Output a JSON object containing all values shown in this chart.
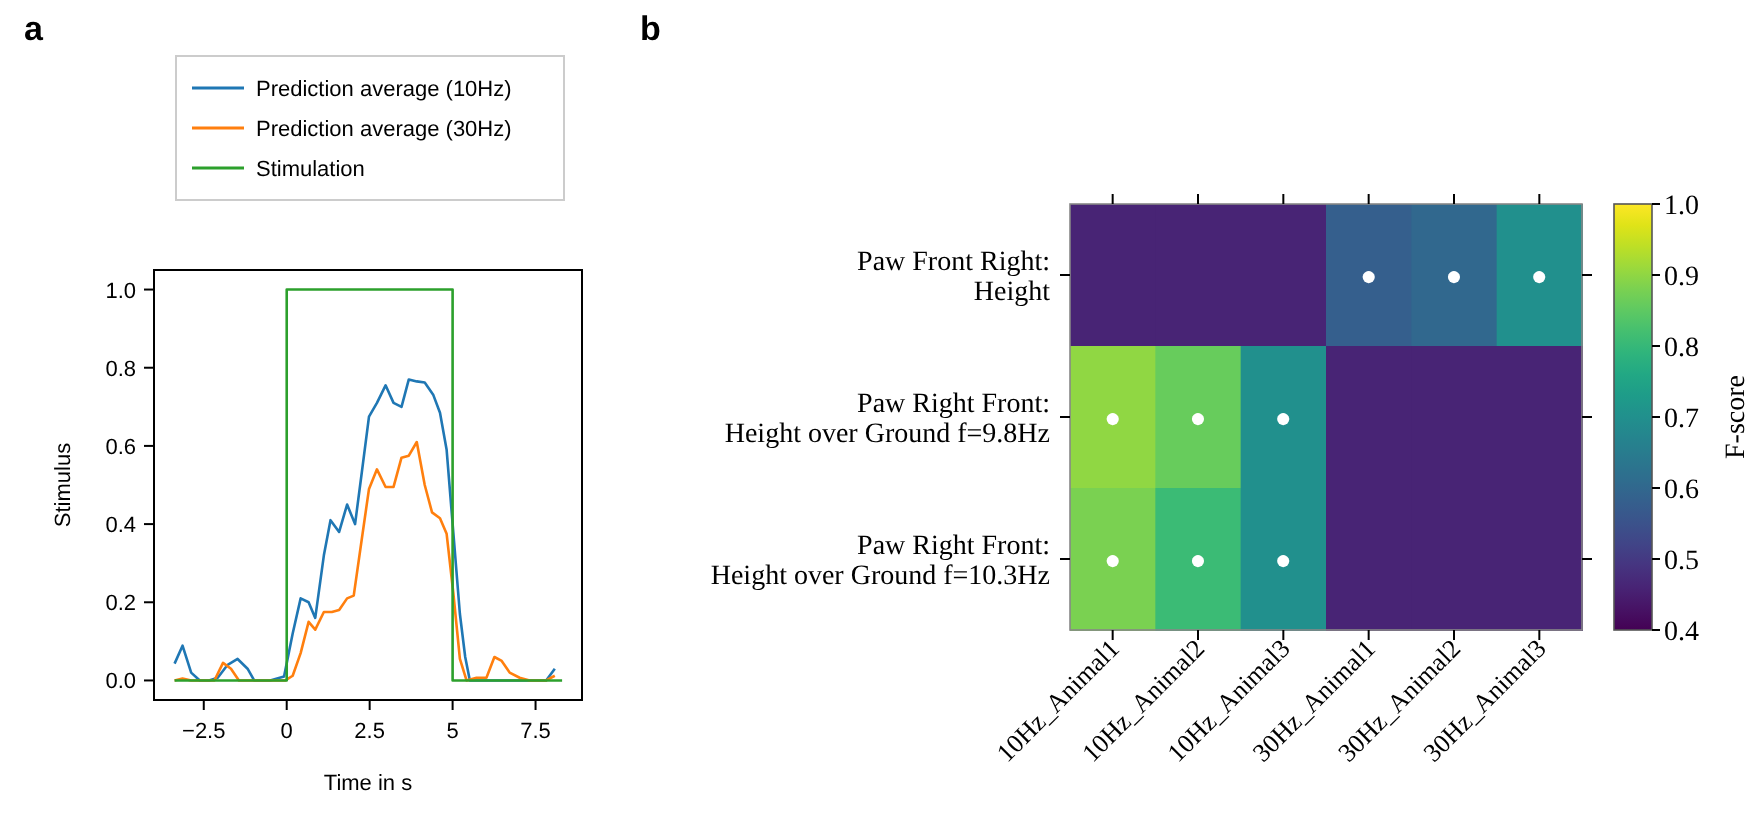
{
  "chart_data": [
    {
      "type": "line",
      "title": "a",
      "xlabel": "Time in s",
      "ylabel": "Stimulus",
      "xlim": [
        -4.0,
        8.9
      ],
      "ylim": [
        -0.05,
        1.05
      ],
      "xticks": [
        {
          "value": -2.5,
          "label": "−2.5"
        },
        0,
        2.5,
        5,
        7.5
      ],
      "yticks": [
        {
          "value": 0,
          "label": "0.0"
        },
        0.2,
        0.4,
        0.6,
        0.8,
        {
          "value": 1,
          "label": "1.0"
        }
      ],
      "legend": "top",
      "grid": false,
      "series": [
        {
          "name": "Prediction average (10Hz)",
          "color": "#1f77b4",
          "x": [
            -3.38,
            -3.14,
            -2.88,
            -2.62,
            -2.34,
            -2.08,
            -1.78,
            -1.48,
            -1.18,
            -0.98,
            -0.5,
            -0.08,
            0.18,
            0.42,
            0.66,
            0.86,
            1.12,
            1.32,
            1.58,
            1.82,
            2.06,
            2.26,
            2.48,
            2.72,
            2.98,
            3.22,
            3.46,
            3.68,
            3.92,
            4.16,
            4.42,
            4.62,
            4.82,
            5.02,
            5.22,
            5.38,
            5.52,
            6.5,
            7.82,
            8.08
          ],
          "values": [
            0.043,
            0.089,
            0.02,
            0,
            0,
            0.007,
            0.04,
            0.055,
            0.03,
            0,
            0,
            0.01,
            0.12,
            0.21,
            0.2,
            0.16,
            0.32,
            0.41,
            0.38,
            0.45,
            0.4,
            0.53,
            0.675,
            0.71,
            0.755,
            0.71,
            0.7,
            0.77,
            0.765,
            0.762,
            0.73,
            0.685,
            0.59,
            0.38,
            0.17,
            0.06,
            0,
            0,
            0,
            0.03
          ]
        },
        {
          "name": "Prediction average (30Hz)",
          "color": "#ff7f0e",
          "x": [
            -3.38,
            -3.14,
            -2.88,
            -2.18,
            -1.92,
            -1.68,
            -1.44,
            -0.5,
            -0.04,
            0.18,
            0.42,
            0.66,
            0.86,
            1.12,
            1.36,
            1.58,
            1.82,
            2.02,
            2.26,
            2.48,
            2.72,
            2.98,
            3.22,
            3.46,
            3.68,
            3.92,
            4.16,
            4.38,
            4.62,
            4.82,
            5.02,
            5.22,
            5.42,
            5.72,
            6.02,
            6.26,
            6.48,
            6.72,
            7.02,
            7.32,
            7.82,
            8.08
          ],
          "values": [
            0,
            0.005,
            0,
            0,
            0.045,
            0.03,
            0,
            0,
            0,
            0.012,
            0.07,
            0.15,
            0.13,
            0.175,
            0.175,
            0.18,
            0.21,
            0.217,
            0.36,
            0.49,
            0.54,
            0.495,
            0.495,
            0.57,
            0.575,
            0.61,
            0.5,
            0.43,
            0.415,
            0.375,
            0.225,
            0.055,
            0,
            0.007,
            0.007,
            0.06,
            0.05,
            0.02,
            0.007,
            0,
            0,
            0.012
          ]
        },
        {
          "name": "Stimulation",
          "color": "#2ca02c",
          "x": [
            -3.38,
            0,
            0,
            5,
            5,
            8.3
          ],
          "values": [
            0,
            0,
            1,
            1,
            0,
            0
          ]
        }
      ]
    },
    {
      "type": "heatmap",
      "title": "b",
      "clabel": "F-score",
      "categories": [
        "10Hz_Animal1",
        "10Hz_Animal2",
        "10Hz_Animal3",
        "30Hz_Animal1",
        "30Hz_Animal2",
        "30Hz_Animal3"
      ],
      "y_categories": [
        "Paw Front Right:\nHeight",
        "Paw Right Front:\nHeight over Ground f=9.8Hz",
        "Paw Right Front:\nHeight over Ground f=10.3Hz"
      ],
      "cells": [
        [
          0.46,
          0.46,
          0.46,
          0.58,
          0.6,
          0.7
        ],
        [
          0.9,
          0.86,
          0.7,
          0.46,
          0.46,
          0.46
        ],
        [
          0.88,
          0.81,
          0.7,
          0.46,
          0.46,
          0.46
        ]
      ],
      "cell_labels": [
        [
          null,
          null,
          null,
          "●",
          "●",
          "●"
        ],
        [
          "●",
          "●",
          "●",
          null,
          null,
          null
        ],
        [
          "●",
          "●",
          "●",
          null,
          null,
          null
        ]
      ],
      "clim": [
        0.4,
        1.0
      ],
      "cticks": [
        0.4,
        0.5,
        0.6,
        0.7,
        0.8,
        0.9,
        {
          "value": 1,
          "label": "1.0"
        }
      ]
    }
  ]
}
